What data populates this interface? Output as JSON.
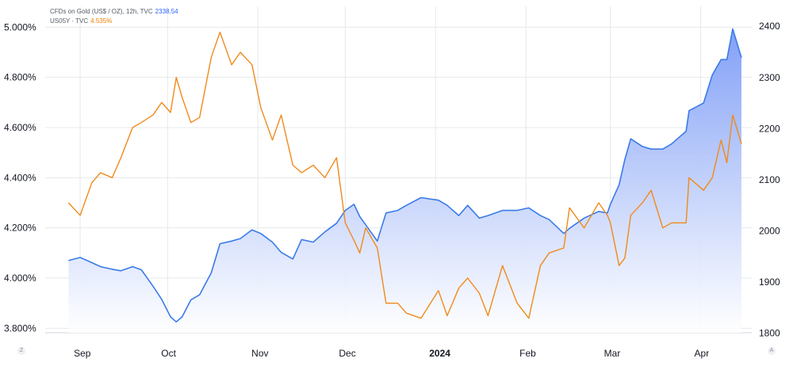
{
  "legend": {
    "gold": {
      "label": "CFDs on Gold (US$ / OZ), 12h, TVC",
      "value": "2338.54"
    },
    "us05y": {
      "label": "US05Y · TVC",
      "value": "4.535%"
    }
  },
  "corner_icons": {
    "left": "Z",
    "right": "A"
  },
  "colors": {
    "gold_line": "#3a7be8",
    "gold_fill_top": "#7b9bf6",
    "gold_fill_bottom": "#ffffff",
    "us05y_line": "#f08a1c",
    "grid": "#e6e8ec",
    "axis_text": "#131722"
  },
  "chart_data": {
    "type": "area",
    "x_ticks": [
      "Sep",
      "Oct",
      "Nov",
      "Dec",
      "2024",
      "Feb",
      "Mar",
      "Apr"
    ],
    "left_axis": {
      "ticks": [
        "5.000%",
        "4.800%",
        "4.600%",
        "4.400%",
        "4.200%",
        "4.000%",
        "3.800%"
      ],
      "ylim": [
        3.76,
        5.02
      ]
    },
    "right_axis": {
      "ticks": [
        "2400",
        "2300",
        "2200",
        "2100",
        "2000",
        "1900",
        "1800"
      ],
      "ylim": [
        1790,
        2405
      ]
    },
    "grid": true,
    "series": [
      {
        "name": "CFDs on Gold (US$ / OZ)",
        "axis": "right",
        "style": "area",
        "x": [
          "2023-08-28",
          "2023-09-01",
          "2023-09-05",
          "2023-09-08",
          "2023-09-12",
          "2023-09-15",
          "2023-09-19",
          "2023-09-22",
          "2023-09-26",
          "2023-09-29",
          "2023-10-02",
          "2023-10-04",
          "2023-10-06",
          "2023-10-09",
          "2023-10-12",
          "2023-10-16",
          "2023-10-19",
          "2023-10-23",
          "2023-10-26",
          "2023-10-30",
          "2023-11-02",
          "2023-11-06",
          "2023-11-09",
          "2023-11-13",
          "2023-11-16",
          "2023-11-20",
          "2023-11-24",
          "2023-11-28",
          "2023-12-01",
          "2023-12-04",
          "2023-12-06",
          "2023-12-08",
          "2023-12-12",
          "2023-12-15",
          "2023-12-19",
          "2023-12-22",
          "2023-12-27",
          "2024-01-02",
          "2024-01-05",
          "2024-01-09",
          "2024-01-12",
          "2024-01-16",
          "2024-01-19",
          "2024-01-24",
          "2024-01-29",
          "2024-02-02",
          "2024-02-06",
          "2024-02-09",
          "2024-02-14",
          "2024-02-16",
          "2024-02-21",
          "2024-02-26",
          "2024-02-29",
          "2024-03-01",
          "2024-03-04",
          "2024-03-06",
          "2024-03-08",
          "2024-03-12",
          "2024-03-15",
          "2024-03-19",
          "2024-03-22",
          "2024-03-27",
          "2024-03-28",
          "2024-04-02",
          "2024-04-05",
          "2024-04-08",
          "2024-04-10",
          "2024-04-12",
          "2024-04-15"
        ],
        "values": [
          1942,
          1948,
          1938,
          1930,
          1925,
          1922,
          1930,
          1924,
          1892,
          1866,
          1832,
          1822,
          1832,
          1865,
          1875,
          1918,
          1975,
          1980,
          1985,
          2002,
          1995,
          1978,
          1958,
          1945,
          1983,
          1978,
          1998,
          2015,
          2040,
          2052,
          2028,
          2012,
          1980,
          2035,
          2040,
          2050,
          2065,
          2060,
          2050,
          2030,
          2050,
          2025,
          2030,
          2040,
          2040,
          2045,
          2030,
          2022,
          1995,
          2005,
          2025,
          2038,
          2035,
          2052,
          2090,
          2140,
          2180,
          2165,
          2160,
          2160,
          2170,
          2195,
          2235,
          2250,
          2305,
          2335,
          2335,
          2395,
          2338.54
        ]
      },
      {
        "name": "US05Y",
        "axis": "left",
        "style": "line",
        "x": [
          "2023-08-28",
          "2023-09-01",
          "2023-09-05",
          "2023-09-08",
          "2023-09-12",
          "2023-09-15",
          "2023-09-19",
          "2023-09-22",
          "2023-09-26",
          "2023-09-29",
          "2023-10-02",
          "2023-10-04",
          "2023-10-06",
          "2023-10-09",
          "2023-10-12",
          "2023-10-16",
          "2023-10-19",
          "2023-10-23",
          "2023-10-26",
          "2023-10-30",
          "2023-11-02",
          "2023-11-06",
          "2023-11-09",
          "2023-11-13",
          "2023-11-16",
          "2023-11-20",
          "2023-11-24",
          "2023-11-28",
          "2023-12-01",
          "2023-12-04",
          "2023-12-06",
          "2023-12-08",
          "2023-12-12",
          "2023-12-15",
          "2023-12-19",
          "2023-12-22",
          "2023-12-27",
          "2024-01-02",
          "2024-01-05",
          "2024-01-09",
          "2024-01-12",
          "2024-01-16",
          "2024-01-19",
          "2024-01-24",
          "2024-01-29",
          "2024-02-02",
          "2024-02-06",
          "2024-02-09",
          "2024-02-14",
          "2024-02-16",
          "2024-02-21",
          "2024-02-26",
          "2024-02-29",
          "2024-03-01",
          "2024-03-04",
          "2024-03-06",
          "2024-03-08",
          "2024-03-12",
          "2024-03-15",
          "2024-03-19",
          "2024-03-22",
          "2024-03-27",
          "2024-03-28",
          "2024-04-02",
          "2024-04-05",
          "2024-04-08",
          "2024-04-10",
          "2024-04-12",
          "2024-04-15"
        ],
        "values": [
          4.3,
          4.25,
          4.38,
          4.42,
          4.4,
          4.48,
          4.6,
          4.62,
          4.65,
          4.7,
          4.66,
          4.8,
          4.72,
          4.62,
          4.64,
          4.88,
          4.98,
          4.85,
          4.9,
          4.85,
          4.68,
          4.55,
          4.65,
          4.45,
          4.42,
          4.45,
          4.4,
          4.48,
          4.22,
          4.15,
          4.1,
          4.2,
          4.12,
          3.9,
          3.9,
          3.86,
          3.84,
          3.95,
          3.85,
          3.96,
          4.0,
          3.94,
          3.85,
          4.05,
          3.9,
          3.84,
          4.05,
          4.1,
          4.12,
          4.28,
          4.2,
          4.3,
          4.25,
          4.22,
          4.05,
          4.08,
          4.25,
          4.3,
          4.35,
          4.2,
          4.22,
          4.22,
          4.4,
          4.35,
          4.4,
          4.55,
          4.46,
          4.65,
          4.535
        ]
      }
    ]
  }
}
